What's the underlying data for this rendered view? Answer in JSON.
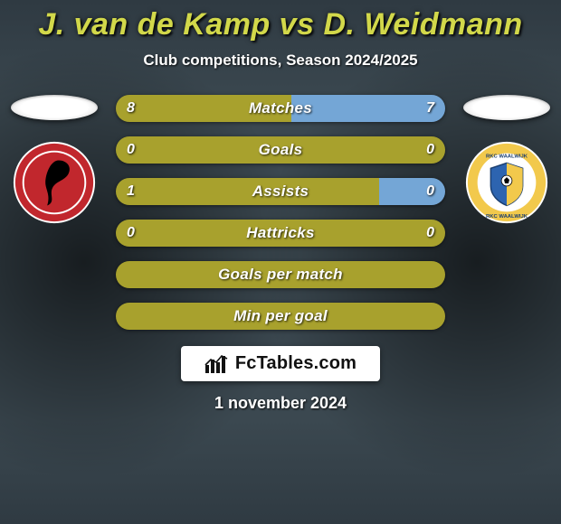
{
  "title": "J. van de Kamp vs D. Weidmann",
  "title_color": "#d2d84a",
  "subtitle": "Club competitions, Season 2024/2025",
  "background_colors": {
    "top": "#2f3a42",
    "mid": "#3b4850"
  },
  "date": "1 november 2024",
  "brand": "FcTables.com",
  "players": {
    "left": {
      "team": "Almere City",
      "logo_colors": {
        "primary": "#c1272d",
        "accent": "#000000",
        "stroke": "#ffffff"
      }
    },
    "right": {
      "team": "RKC Waalwijk",
      "logo_colors": {
        "primary": "#f2c94c",
        "secondary": "#2d64b0",
        "stroke": "#ffffff"
      }
    }
  },
  "bar_style": {
    "height": 30,
    "radius": 15,
    "color_left": "#a8a12d",
    "color_right": "#74a6d6",
    "label_fontsize": 17,
    "value_fontsize": 16,
    "gap": 16,
    "text_color": "#ffffff"
  },
  "bars": [
    {
      "label": "Matches",
      "left_val": "8",
      "right_val": "7",
      "left_pct": 53.3,
      "right_pct": 46.7
    },
    {
      "label": "Goals",
      "left_val": "0",
      "right_val": "0",
      "left_pct": 100,
      "right_pct": 0
    },
    {
      "label": "Assists",
      "left_val": "1",
      "right_val": "0",
      "left_pct": 80,
      "right_pct": 20
    },
    {
      "label": "Hattricks",
      "left_val": "0",
      "right_val": "0",
      "left_pct": 100,
      "right_pct": 0
    },
    {
      "label": "Goals per match",
      "left_val": "",
      "right_val": "",
      "left_pct": 100,
      "right_pct": 0
    },
    {
      "label": "Min per goal",
      "left_val": "",
      "right_val": "",
      "left_pct": 100,
      "right_pct": 0
    }
  ]
}
